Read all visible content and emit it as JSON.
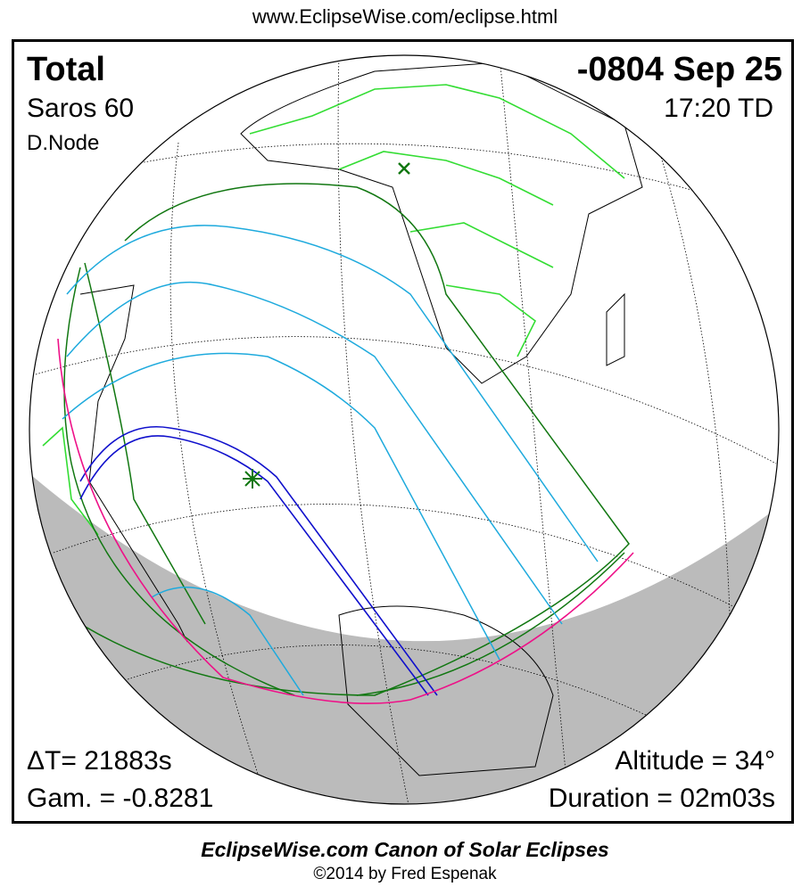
{
  "header_url": "www.EclipseWise.com/eclipse.html",
  "eclipse": {
    "type": "Total",
    "saros": "Saros  60",
    "node": "D.Node",
    "date": "-0804 Sep 25",
    "time": "17:20 TD",
    "delta_t": "ΔT=  21883s",
    "gamma": "Gam. = -0.8281",
    "altitude": "Altitude = 34°",
    "duration": "Duration = 02m03s"
  },
  "footer": {
    "title": "EclipseWise.com Canon of Solar Eclipses",
    "copyright": "©2014 by Fred Espenak"
  },
  "colors": {
    "coastline": "#000000",
    "borders": "#33dd33",
    "penumbral_limits": "#117711",
    "partial_magnitude_lines": "#1eaadd",
    "central_path": "#1010cc",
    "sunrise_sunset": "#ee1188",
    "night": "#bbbbbb"
  }
}
